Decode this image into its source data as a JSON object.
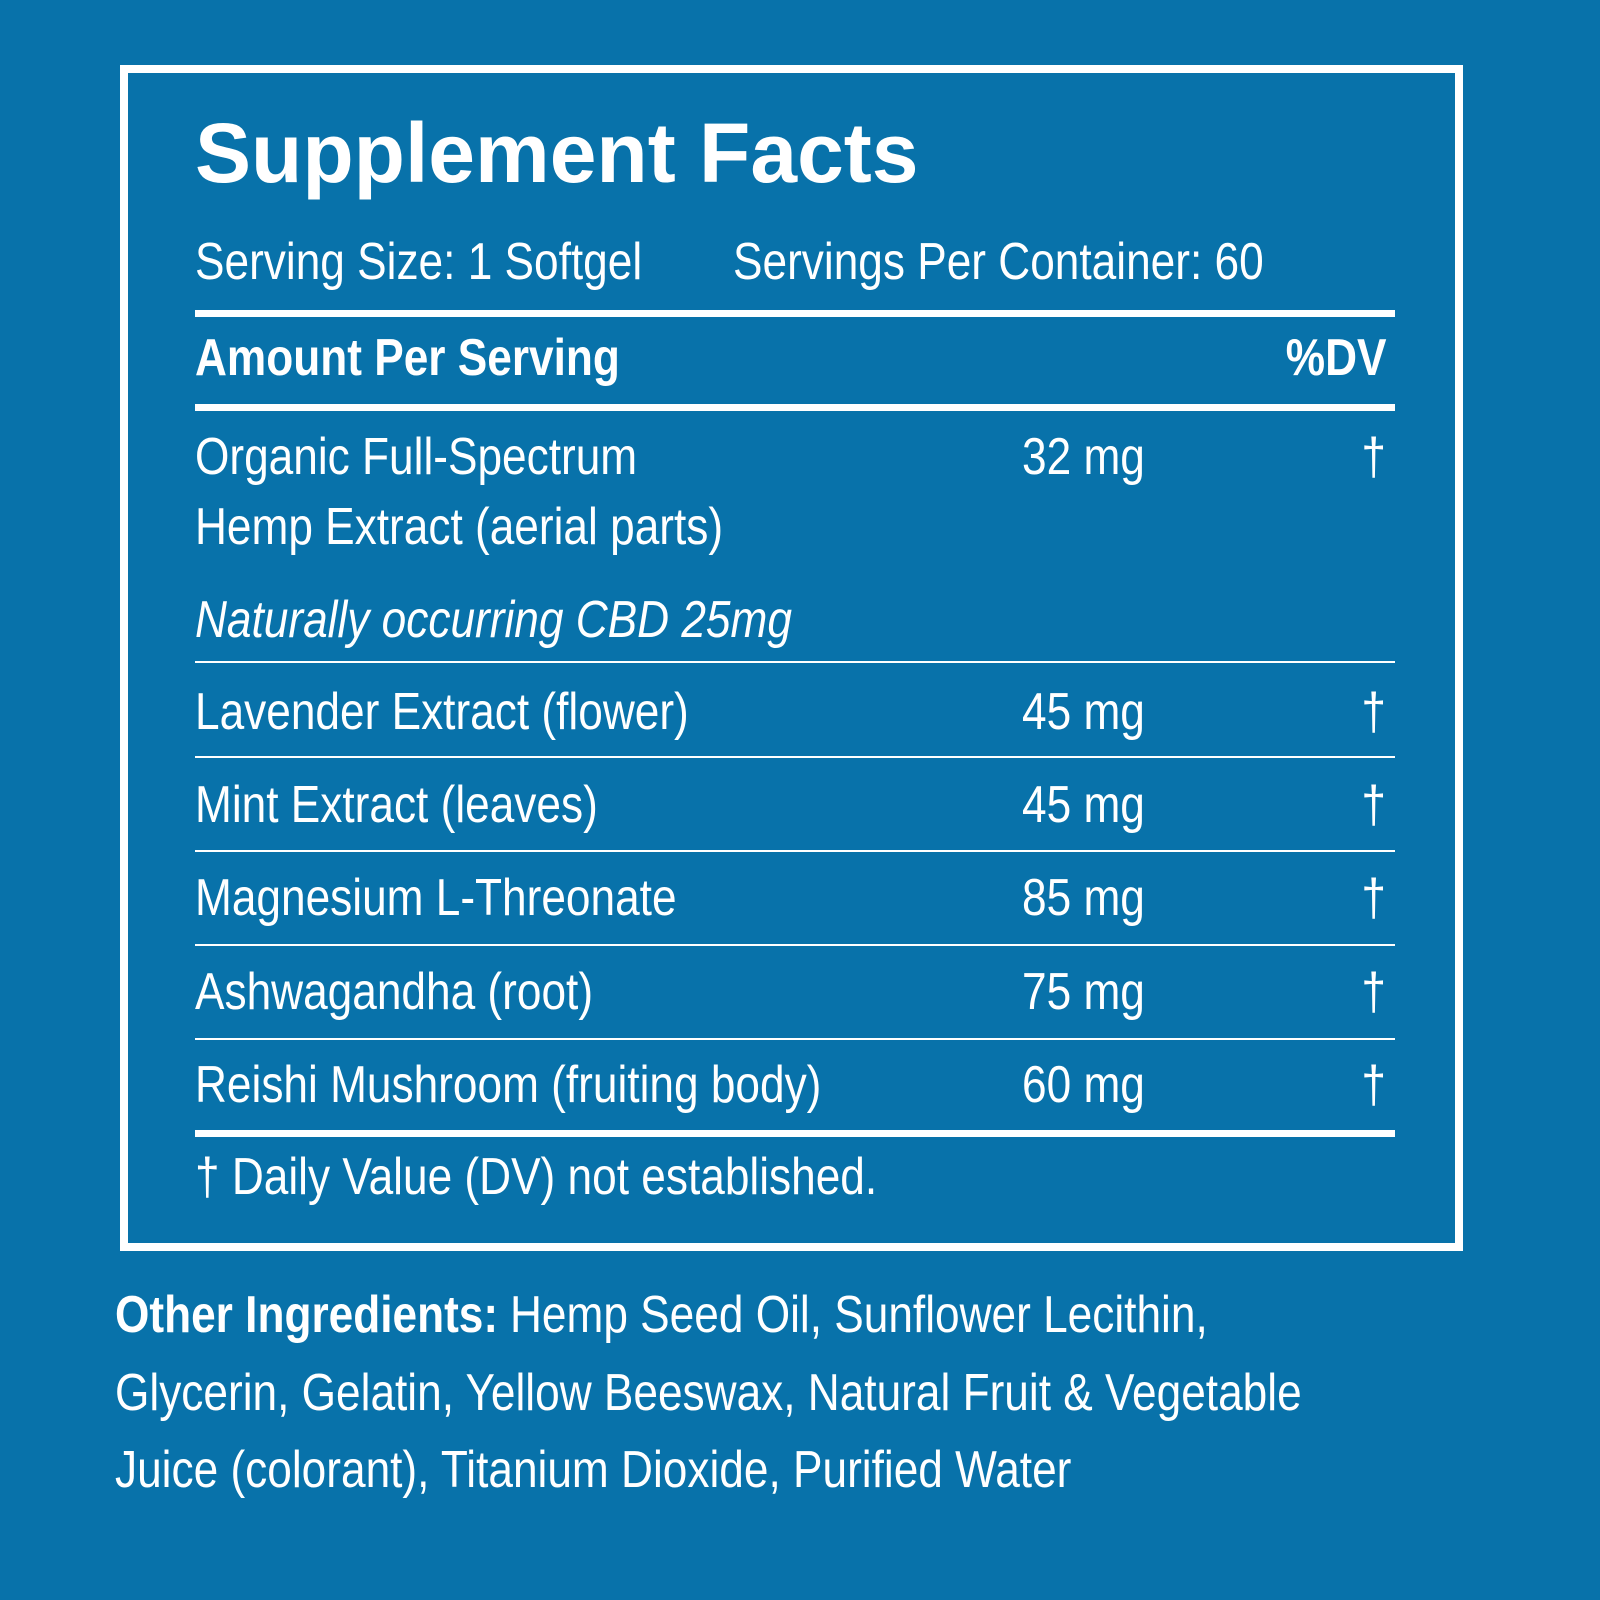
{
  "title": "Supplement Facts",
  "serving_size": "Serving Size: 1 Softgel",
  "servings_per_container": "Servings Per Container: 60",
  "header": {
    "amount": "Amount Per Serving",
    "dv": "%DV"
  },
  "rows": [
    {
      "name": [
        "Organic Full-Spectrum",
        "Hemp Extract (aerial parts)"
      ],
      "amount": "32 mg",
      "dv": "†",
      "note": "Naturally occurring CBD 25mg"
    },
    {
      "name": [
        "Lavender Extract (flower)"
      ],
      "amount": "45 mg",
      "dv": "†"
    },
    {
      "name": [
        "Mint Extract (leaves)"
      ],
      "amount": "45 mg",
      "dv": "†"
    },
    {
      "name": [
        "Magnesium L-Threonate"
      ],
      "amount": "85 mg",
      "dv": "†"
    },
    {
      "name": [
        "Ashwagandha (root)"
      ],
      "amount": "75 mg",
      "dv": "†"
    },
    {
      "name": [
        "Reishi Mushroom (fruiting body)"
      ],
      "amount": "60 mg",
      "dv": "†"
    }
  ],
  "footnote": "† Daily Value (DV) not established.",
  "other_ingredients": {
    "label": "Other Ingredients:",
    "lines": [
      "Hemp Seed Oil, Sunflower Lecithin,",
      "Glycerin, Gelatin, Yellow Beeswax, Natural Fruit & Vegetable",
      "Juice (colorant), Titanium Dioxide, Purified Water"
    ]
  }
}
